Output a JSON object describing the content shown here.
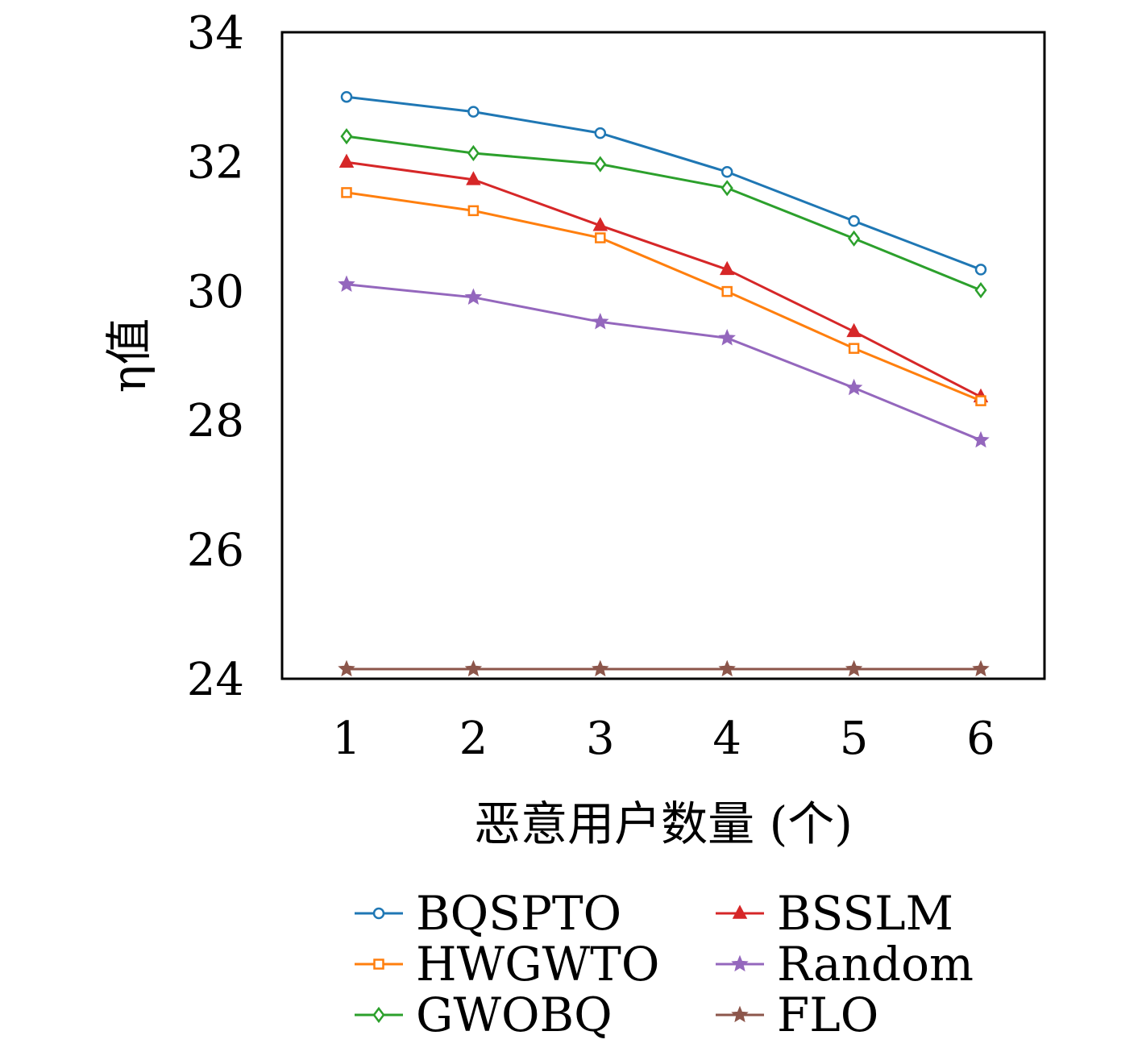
{
  "chart_data": {
    "type": "line",
    "title": "",
    "xlabel": "恶意用户数量 (个)",
    "ylabel": "η值",
    "x": [
      1,
      2,
      3,
      4,
      5,
      6
    ],
    "xticks": [
      "1",
      "2",
      "3",
      "4",
      "5",
      "6"
    ],
    "yticks": [
      "24",
      "26",
      "28",
      "30",
      "32",
      "34"
    ],
    "ylim": [
      24,
      34
    ],
    "xlim": [
      0.5,
      6.5
    ],
    "grid": false,
    "legend_placement": "bottom",
    "series": [
      {
        "name": "BQSPTO",
        "color": "#1f77b4",
        "marker": "circle",
        "values": [
          33.0,
          32.77,
          32.44,
          31.84,
          31.08,
          30.33
        ]
      },
      {
        "name": "BSSLM",
        "color": "#d62728",
        "marker": "triangle",
        "values": [
          31.99,
          31.72,
          31.01,
          30.33,
          29.37,
          28.36
        ]
      },
      {
        "name": "HWGWTO",
        "color": "#ff7f0e",
        "marker": "square",
        "values": [
          31.52,
          31.24,
          30.82,
          29.99,
          29.11,
          28.3
        ]
      },
      {
        "name": "Random",
        "color": "#9467bd",
        "marker": "star",
        "values": [
          30.1,
          29.9,
          29.52,
          29.27,
          28.5,
          27.69
        ]
      },
      {
        "name": "GWOBQ",
        "color": "#2ca02c",
        "marker": "diamond",
        "values": [
          32.39,
          32.13,
          31.96,
          31.59,
          30.81,
          30.01
        ]
      },
      {
        "name": "FLO",
        "color": "#8c564b",
        "marker": "star",
        "values": [
          24.15,
          24.15,
          24.15,
          24.15,
          24.15,
          24.15
        ]
      }
    ]
  }
}
